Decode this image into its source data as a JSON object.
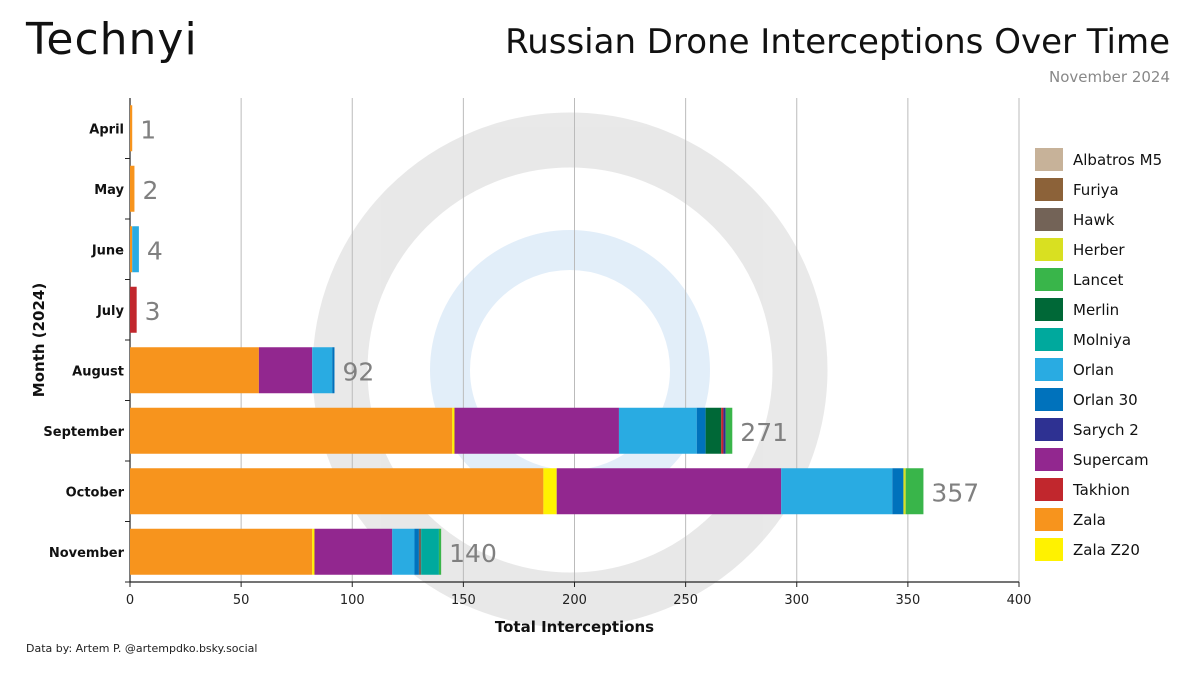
{
  "header": {
    "brand": "Technyi",
    "title": "Russian Drone Interceptions Over Time",
    "subtitle": "November 2024"
  },
  "footer": {
    "credit": "Data by: Artem P. @artempdko.bsky.social"
  },
  "chart_data": {
    "type": "bar",
    "orientation": "horizontal",
    "stacked": true,
    "title": "Russian Drone Interceptions Over Time",
    "xlabel": "Total Interceptions",
    "ylabel": "Month (2024)",
    "xlim": [
      0,
      400
    ],
    "xticks": [
      0,
      50,
      100,
      150,
      200,
      250,
      300,
      350,
      400
    ],
    "grid": true,
    "legend_position": "right",
    "categories": [
      "April",
      "May",
      "June",
      "July",
      "August",
      "September",
      "October",
      "November"
    ],
    "totals": [
      1,
      2,
      4,
      3,
      92,
      271,
      357,
      140
    ],
    "series": [
      {
        "name": "Zala",
        "color": "#F7941D",
        "values": [
          1,
          2,
          1,
          0,
          58,
          145,
          186,
          82
        ]
      },
      {
        "name": "Zala Z20",
        "color": "#FFF200",
        "values": [
          0,
          0,
          0,
          0,
          0,
          1,
          6,
          1
        ]
      },
      {
        "name": "Supercam",
        "color": "#92278F",
        "values": [
          0,
          0,
          0,
          0,
          24,
          74,
          101,
          35
        ]
      },
      {
        "name": "Orlan",
        "color": "#29ABE2",
        "values": [
          0,
          0,
          3,
          0,
          9,
          35,
          50,
          10
        ]
      },
      {
        "name": "Orlan 30",
        "color": "#0072BC",
        "values": [
          0,
          0,
          0,
          0,
          1,
          4,
          5,
          2
        ]
      },
      {
        "name": "Hawk",
        "color": "#736357",
        "values": [
          0,
          0,
          0,
          0,
          0,
          0,
          0,
          1
        ]
      },
      {
        "name": "Merlin",
        "color": "#006837",
        "values": [
          0,
          0,
          0,
          0,
          0,
          7,
          0,
          0
        ]
      },
      {
        "name": "Takhion",
        "color": "#C1272D",
        "values": [
          0,
          0,
          0,
          3,
          0,
          1,
          0,
          0
        ]
      },
      {
        "name": "Sarych 2",
        "color": "#2E3192",
        "values": [
          0,
          0,
          0,
          0,
          0,
          1,
          0,
          0
        ]
      },
      {
        "name": "Herber",
        "color": "#D9E021",
        "values": [
          0,
          0,
          0,
          0,
          0,
          0,
          1,
          0
        ]
      },
      {
        "name": "Molniya",
        "color": "#00A99D",
        "values": [
          0,
          0,
          0,
          0,
          0,
          0,
          0,
          8
        ]
      },
      {
        "name": "Lancet",
        "color": "#39B54A",
        "values": [
          0,
          0,
          0,
          0,
          0,
          3,
          8,
          1
        ]
      },
      {
        "name": "Albatros M5",
        "color": "#C7B299",
        "values": [
          0,
          0,
          0,
          0,
          0,
          0,
          0,
          0
        ]
      },
      {
        "name": "Furiya",
        "color": "#8C6239",
        "values": [
          0,
          0,
          0,
          0,
          0,
          0,
          0,
          0
        ]
      }
    ],
    "legend": [
      "Albatros M5",
      "Furiya",
      "Hawk",
      "Herber",
      "Lancet",
      "Merlin",
      "Molniya",
      "Orlan",
      "Orlan 30",
      "Sarych 2",
      "Supercam",
      "Takhion",
      "Zala",
      "Zala Z20"
    ]
  }
}
